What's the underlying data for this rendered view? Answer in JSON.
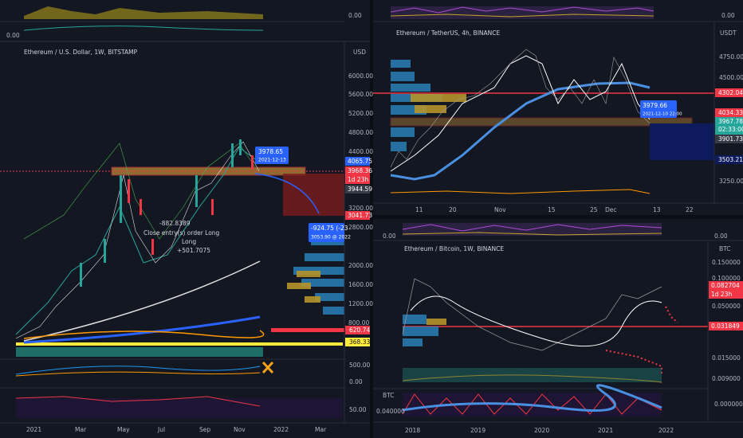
{
  "left": {
    "title": "Ethereum / U.S. Dollar, 1W, BITSTAMP",
    "top_indicator": "0.00",
    "second_indicator": "0.00",
    "currency": "USD",
    "price_labels": [
      "6000.00",
      "5600.00",
      "5200.00",
      "4800.00",
      "4400.00",
      "3200.00",
      "2800.00",
      "2000.00",
      "1600.00",
      "1200.00",
      "800.00"
    ],
    "tags": {
      "a": "4065.75",
      "b": "3968.36",
      "b_time": "1d 23h",
      "c": "3944.59",
      "d": "3041.73",
      "e": "620.74",
      "f": "368.33"
    },
    "sub_labels": [
      "500.00",
      "0.00",
      "50.00"
    ],
    "time_labels": [
      "2021",
      "Mar",
      "May",
      "Jul",
      "Sep",
      "Nov",
      "2022",
      "Mar"
    ],
    "annotations": {
      "price_box": "3978.65",
      "price_box_date": "2021-12-13",
      "loss": "-882.8389",
      "close_entry": "Close entry(s) order Long",
      "long": "Long",
      "gain": "+501.7075",
      "projection": "-924.75 (-23",
      "projection_target": "3053.90 @ 2022"
    }
  },
  "right_top": {
    "title": "Ethereum / TetherUS, 4h, BINANCE",
    "top_indicator": "0.00",
    "currency": "USDT",
    "price_labels": [
      "4750.00",
      "4500.00",
      "3250.00"
    ],
    "tags": {
      "a": "4302.04",
      "b": "4034.33",
      "c": "3967.78",
      "c_time": "02:33:00",
      "d": "3901.73",
      "e": "3503.21"
    },
    "annotations": {
      "price_box": "3979.66",
      "price_box_date": "2021-12-10 22:00"
    },
    "time_labels": [
      "11",
      "20",
      "Nov",
      "15",
      "25",
      "Dec",
      "13",
      "22"
    ]
  },
  "right_bottom": {
    "title": "Ethereum / Bitcoin, 1W, BINANCE",
    "top_indicator_left": "0.00",
    "top_indicator_right": "0.00",
    "currency": "BTC",
    "price_labels": [
      "0.150000",
      "0.100000",
      "0.050000",
      "0.015000",
      "0.009000"
    ],
    "tags": {
      "a": "0.082704",
      "a_time": "1d 23h",
      "b": "0.031849"
    },
    "sub_currency": "BTC",
    "sub_left": "0.040000",
    "sub_right": "0.000000",
    "time_labels": [
      "2018",
      "2019",
      "2020",
      "2021",
      "2022"
    ]
  }
}
